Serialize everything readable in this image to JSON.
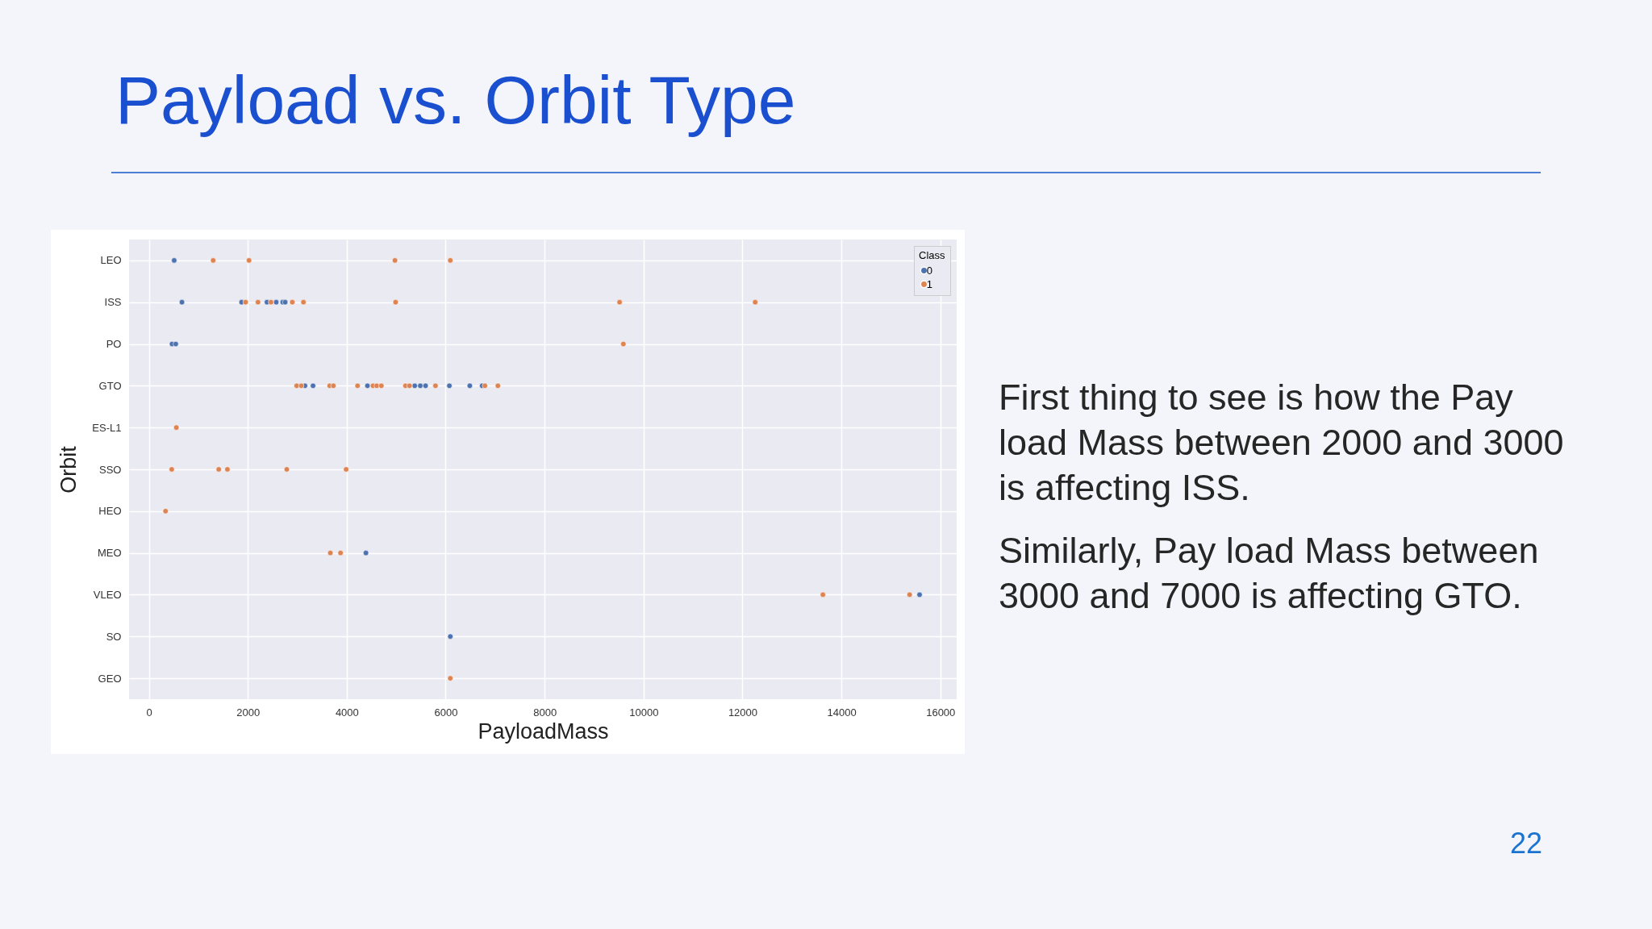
{
  "chart_data": {
    "type": "scatter",
    "orientation": "horizontal",
    "title": "Payload vs. Orbit Type",
    "xlabel": "PayloadMass",
    "ylabel": "Orbit",
    "legend_title": "Class",
    "categories": [
      "LEO",
      "ISS",
      "PO",
      "GTO",
      "ES-L1",
      "SSO",
      "HEO",
      "MEO",
      "VLEO",
      "SO",
      "GEO"
    ],
    "series": [
      {
        "name": "0",
        "color": "#4c72b0",
        "x": [
          "LEO",
          "ISS",
          "ISS",
          "ISS",
          "ISS",
          "ISS",
          "ISS",
          "PO",
          "PO",
          "GTO",
          "GTO",
          "GTO",
          "GTO",
          "GTO",
          "GTO",
          "GTO",
          "GTO",
          "GTO",
          "MEO",
          "VLEO",
          "SO"
        ],
        "values": [
          512,
          669,
          1875,
          2388,
          2575,
          2706,
          2756,
          469,
          544,
          3156,
          3319,
          4419,
          5375,
          5488,
          5594,
          6075,
          6488,
          6738,
          4388,
          15580,
          6094
        ]
      },
      {
        "name": "1",
        "color": "#dd8452",
        "x": [
          "LEO",
          "LEO",
          "LEO",
          "LEO",
          "ISS",
          "ISS",
          "ISS",
          "ISS",
          "ISS",
          "ISS",
          "ISS",
          "ISS",
          "PO",
          "GTO",
          "GTO",
          "GTO",
          "GTO",
          "GTO",
          "GTO",
          "GTO",
          "GTO",
          "GTO",
          "GTO",
          "GTO",
          "GTO",
          "GTO",
          "ES-L1",
          "SSO",
          "SSO",
          "SSO",
          "SSO",
          "SSO",
          "HEO",
          "MEO",
          "MEO",
          "VLEO",
          "VLEO",
          "GEO"
        ],
        "values": [
          1300,
          2025,
          4975,
          6094,
          1956,
          2206,
          2469,
          2900,
          3125,
          4988,
          9516,
          12257,
          9592,
          2988,
          3081,
          3656,
          3731,
          4219,
          4531,
          4606,
          4700,
          5188,
          5269,
          5794,
          6794,
          7056,
          556,
          463,
          1413,
          1588,
          2788,
          3988,
          338,
          3669,
          3875,
          13626,
          15379,
          6094
        ]
      }
    ],
    "xlim": [
      -400,
      16330
    ],
    "xticks": [
      0,
      2000,
      4000,
      6000,
      8000,
      10000,
      12000,
      14000,
      16000
    ],
    "grid": true,
    "legend": "top right",
    "marker": "circle",
    "annotations": [
      "First thing to see is how the Pay load Mass between 2000 and 3000 is affecting ISS.",
      "Similarly, Pay load Mass between 3000 and 7000 is affecting GTO.",
      "22"
    ]
  }
}
